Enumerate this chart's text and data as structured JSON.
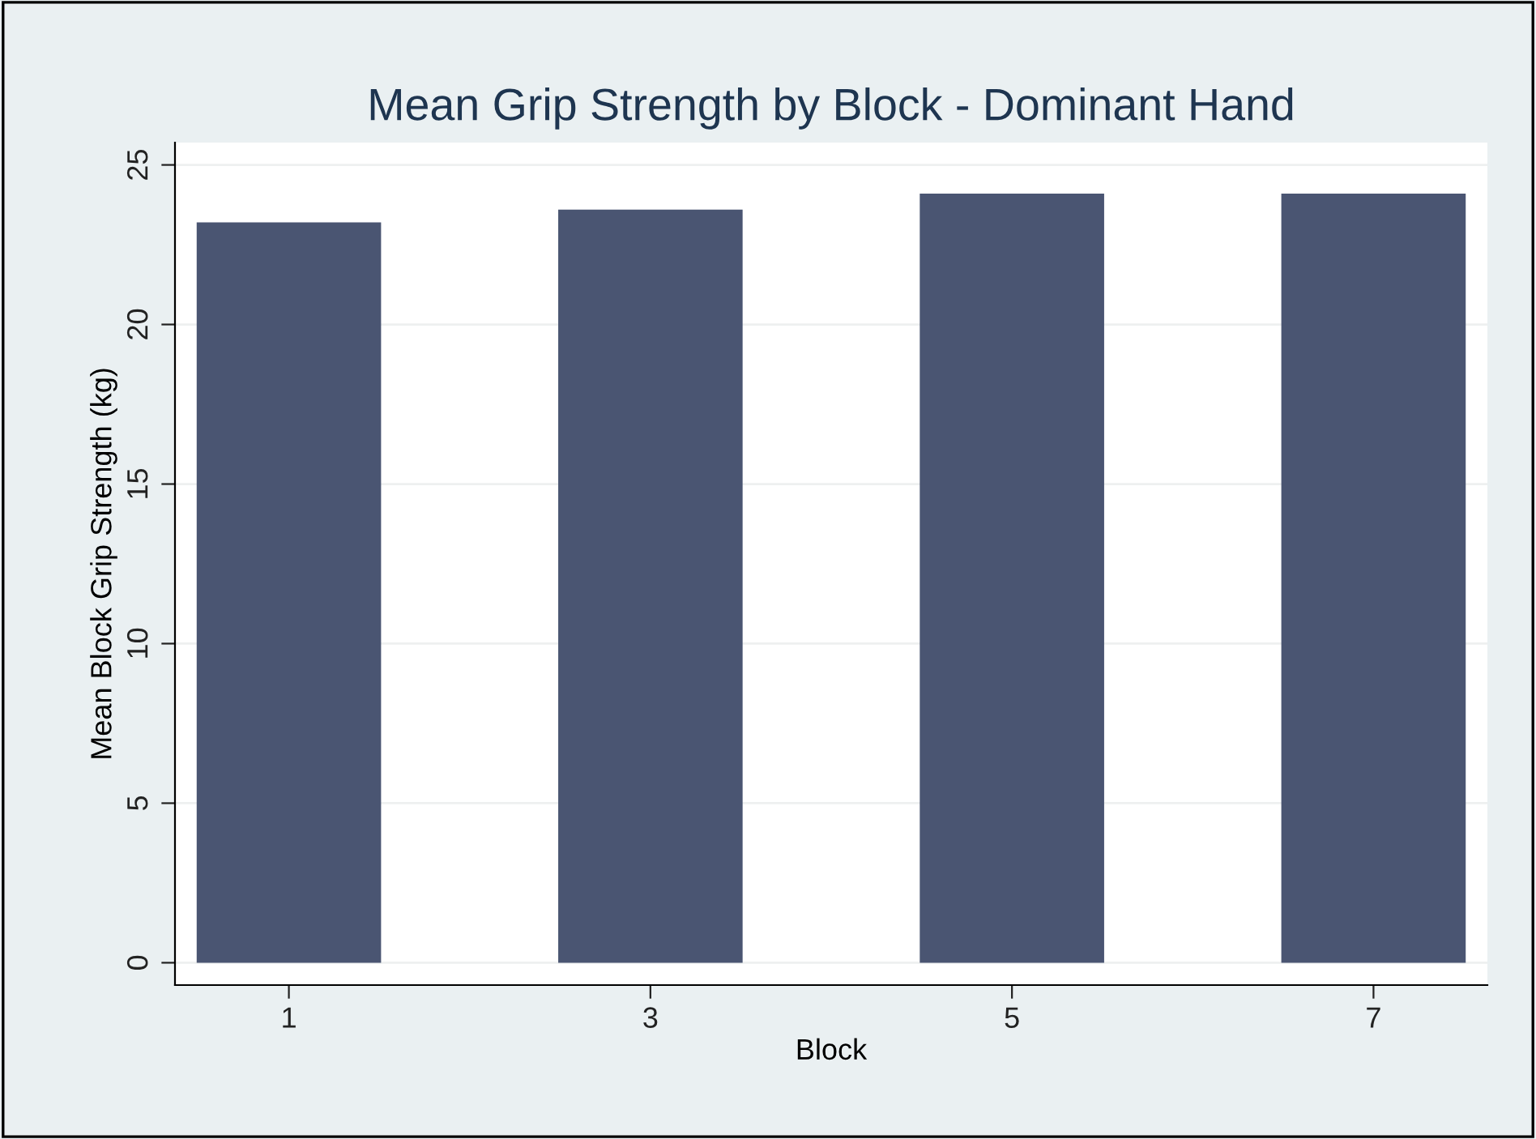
{
  "chart_data": {
    "type": "bar",
    "title": "Mean Grip Strength by Block - Dominant Hand",
    "xlabel": "Block",
    "ylabel": "Mean Block Grip Strength (kg)",
    "x": [
      1,
      3,
      5,
      7
    ],
    "values": [
      23.2,
      23.6,
      24.1,
      24.1
    ],
    "color": "#4a5572",
    "xlim": [
      0.37,
      7.63
    ],
    "xticks": [
      1,
      3,
      5,
      7
    ],
    "ylim": [
      -0.7,
      25.7
    ],
    "yticks": [
      0,
      5,
      10,
      15,
      20,
      25
    ],
    "grid": "y"
  }
}
